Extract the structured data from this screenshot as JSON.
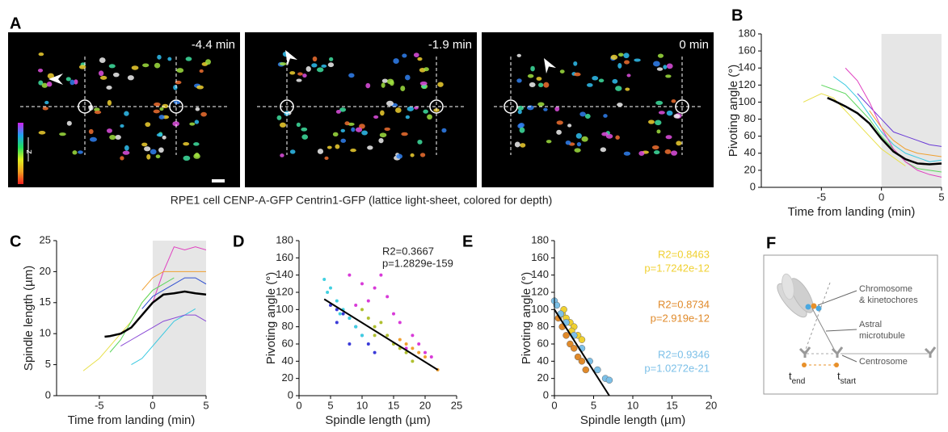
{
  "panel_a": {
    "label": "A",
    "frames": [
      "-4.4 min",
      "-1.9 min",
      "0 min"
    ],
    "axis_label": "z",
    "caption": "RPE1 cell CENP-A-GFP Centrin1-GFP (lattice light-sheet, colored for depth)"
  },
  "chart_data": [
    {
      "type": "line",
      "panel": "B",
      "y_label": "Pivoting angle (°)",
      "x_label": "Time from landing (min)",
      "xlim": [
        -10,
        5
      ],
      "xticks": [
        -5,
        0,
        5
      ],
      "ylim": [
        0,
        180
      ],
      "yticks": [
        0,
        20,
        40,
        60,
        80,
        100,
        120,
        140,
        160,
        180
      ],
      "shade": [
        0,
        5
      ],
      "series": [
        {
          "color": "#35c8e0",
          "x": [
            -4,
            -3,
            -2,
            -1,
            0,
            1,
            2,
            3,
            4,
            5
          ],
          "values": [
            130,
            120,
            105,
            85,
            65,
            50,
            40,
            35,
            30,
            32
          ]
        },
        {
          "color": "#6a3ad6",
          "x": [
            -2,
            -1,
            0,
            1,
            2,
            3,
            4,
            5
          ],
          "values": [
            110,
            95,
            80,
            65,
            60,
            55,
            50,
            48
          ]
        },
        {
          "color": "#5cd65c",
          "x": [
            -5,
            -4,
            -3,
            -2,
            -1,
            0,
            1,
            2,
            3,
            4,
            5
          ],
          "values": [
            120,
            115,
            110,
            95,
            80,
            60,
            45,
            30,
            22,
            20,
            18
          ]
        },
        {
          "color": "#e8e04a",
          "x": [
            -6.5,
            -5,
            -4,
            -3,
            -2,
            -1,
            0,
            1,
            2
          ],
          "values": [
            100,
            110,
            105,
            90,
            75,
            60,
            45,
            35,
            25
          ]
        },
        {
          "color": "#e040c0",
          "x": [
            -3,
            -2,
            -1,
            0,
            1,
            2,
            3,
            4,
            5
          ],
          "values": [
            140,
            125,
            100,
            70,
            45,
            30,
            20,
            15,
            12
          ]
        },
        {
          "color": "#f0a030",
          "x": [
            -1,
            0,
            1,
            2,
            3,
            4,
            5
          ],
          "values": [
            90,
            70,
            55,
            45,
            40,
            38,
            36
          ]
        },
        {
          "color": "#000000",
          "x": [
            -4.5,
            -4,
            -3,
            -2,
            -1,
            0,
            1,
            2,
            3,
            4,
            5
          ],
          "values": [
            105,
            102,
            95,
            87,
            75,
            57,
            42,
            33,
            28,
            27,
            28
          ]
        }
      ]
    },
    {
      "type": "line",
      "panel": "C",
      "y_label": "Spindle length (µm)",
      "x_label": "Time from landing (min)",
      "xlim": [
        -9,
        5
      ],
      "xticks": [
        -5,
        0,
        5
      ],
      "ylim": [
        0,
        25
      ],
      "yticks": [
        0,
        5,
        10,
        15,
        20,
        25
      ],
      "shade": [
        0,
        5
      ],
      "series": [
        {
          "color": "#e040c0",
          "x": [
            0,
            1,
            2,
            3,
            4,
            5
          ],
          "values": [
            15,
            20,
            24,
            23.5,
            24,
            23.5
          ]
        },
        {
          "color": "#f0a030",
          "x": [
            -1,
            0,
            1,
            2,
            3,
            4,
            5
          ],
          "values": [
            17,
            19,
            20,
            20,
            20,
            20,
            20
          ]
        },
        {
          "color": "#e8e04a",
          "x": [
            -6.5,
            -5,
            -4,
            -3,
            -2,
            -1,
            0
          ],
          "values": [
            4,
            6,
            8,
            10,
            12,
            15,
            17
          ]
        },
        {
          "color": "#35c8e0",
          "x": [
            -2,
            -1,
            0,
            1,
            2,
            3,
            4
          ],
          "values": [
            5,
            6,
            8,
            10,
            12,
            13,
            14
          ]
        },
        {
          "color": "#5cd65c",
          "x": [
            -4,
            -3,
            -2,
            -1,
            0,
            1,
            2
          ],
          "values": [
            7,
            9,
            12,
            15,
            17,
            18,
            19
          ]
        },
        {
          "color": "#3050d0",
          "x": [
            -1,
            0,
            1,
            2,
            3,
            4,
            5
          ],
          "values": [
            14,
            16,
            17,
            18,
            19,
            19,
            18
          ]
        },
        {
          "color": "#8a4ad6",
          "x": [
            -3,
            -2,
            -1,
            0,
            1,
            2,
            3,
            4,
            5
          ],
          "values": [
            8,
            9,
            10,
            11,
            12,
            12.5,
            13,
            13,
            12
          ]
        },
        {
          "color": "#000000",
          "x": [
            -4.5,
            -4,
            -3,
            -2,
            -1,
            0,
            1,
            2,
            3,
            4,
            5
          ],
          "values": [
            9.5,
            9.6,
            10,
            11,
            13,
            15,
            16.3,
            16.5,
            16.8,
            16.5,
            16.3
          ]
        }
      ]
    },
    {
      "type": "scatter",
      "panel": "D",
      "y_label": "Pivoting angle (°)",
      "x_label": "Spindle length (µm)",
      "xlim": [
        0,
        25
      ],
      "xticks": [
        0,
        5,
        10,
        15,
        20,
        25
      ],
      "ylim": [
        0,
        180
      ],
      "yticks": [
        0,
        20,
        40,
        60,
        80,
        100,
        120,
        140,
        160,
        180
      ],
      "annotations": [
        "R2=0.3667",
        "p=1.2829e-159"
      ],
      "fit": {
        "x": [
          4,
          22
        ],
        "values": [
          112,
          30
        ]
      },
      "series": [
        {
          "color": "#d83ad8",
          "x": [
            8,
            10,
            12,
            14,
            15,
            16,
            18,
            19,
            20,
            13,
            11,
            17,
            9,
            21
          ],
          "values": [
            140,
            130,
            125,
            115,
            95,
            85,
            70,
            60,
            50,
            140,
            110,
            55,
            105,
            45
          ]
        },
        {
          "color": "#3a3ad8",
          "x": [
            5,
            6,
            7,
            8,
            9,
            10,
            11,
            12,
            6,
            8
          ],
          "values": [
            105,
            100,
            95,
            90,
            80,
            70,
            60,
            50,
            85,
            60
          ]
        },
        {
          "color": "#b0c030",
          "x": [
            10,
            11,
            12,
            13,
            14,
            15,
            16,
            17,
            18,
            12
          ],
          "values": [
            100,
            90,
            80,
            85,
            70,
            60,
            55,
            50,
            40,
            70
          ]
        },
        {
          "color": "#40d0e0",
          "x": [
            4,
            5,
            6,
            7,
            8,
            9,
            10,
            4.5,
            6.5
          ],
          "values": [
            135,
            125,
            110,
            100,
            90,
            80,
            70,
            120,
            95
          ]
        },
        {
          "color": "#f0a030",
          "x": [
            16,
            18,
            20,
            22,
            19,
            17
          ],
          "values": [
            65,
            55,
            45,
            30,
            50,
            60
          ]
        }
      ]
    },
    {
      "type": "scatter",
      "panel": "E",
      "y_label": "Pivoting angle (°)",
      "x_label": "Spindle length (µm)",
      "xlim": [
        0,
        20
      ],
      "xticks": [
        0,
        5,
        10,
        15,
        20
      ],
      "ylim": [
        0,
        180
      ],
      "yticks": [
        0,
        20,
        40,
        60,
        80,
        100,
        120,
        140,
        160,
        180
      ],
      "fit": {
        "x": [
          0,
          7
        ],
        "values": [
          100,
          0
        ]
      },
      "series": [
        {
          "color": "#f0d030",
          "r2": "R2=0.8463",
          "p": "p=1.7242e-12",
          "x": [
            1,
            1.5,
            2,
            2.5,
            3,
            1.2,
            2.2,
            3.5
          ],
          "values": [
            95,
            90,
            85,
            80,
            70,
            100,
            75,
            65
          ]
        },
        {
          "color": "#e08a2a",
          "r2": "R2=0.8734",
          "p": "p=2.919e-12",
          "x": [
            0.5,
            1,
            1.5,
            2,
            2.5,
            3,
            3.5,
            4
          ],
          "values": [
            90,
            80,
            70,
            60,
            55,
            45,
            40,
            30
          ]
        },
        {
          "color": "#7cc0e8",
          "r2": "R2=0.9346",
          "p": "p=1.0272e-21",
          "x": [
            0,
            0.3,
            0.8,
            1.5,
            2.5,
            3.5,
            4.5,
            5.5,
            6.5,
            7
          ],
          "values": [
            110,
            105,
            95,
            85,
            70,
            55,
            40,
            30,
            20,
            18
          ]
        }
      ]
    }
  ],
  "panel_f": {
    "label": "F",
    "labels": [
      "Chromosome",
      "& kinetochores",
      "Astral",
      "microtubule",
      "Centrosome"
    ],
    "t_end": {
      "symbol": "t",
      "sub": "end"
    },
    "t_start": {
      "symbol": "t",
      "sub": "start"
    }
  }
}
